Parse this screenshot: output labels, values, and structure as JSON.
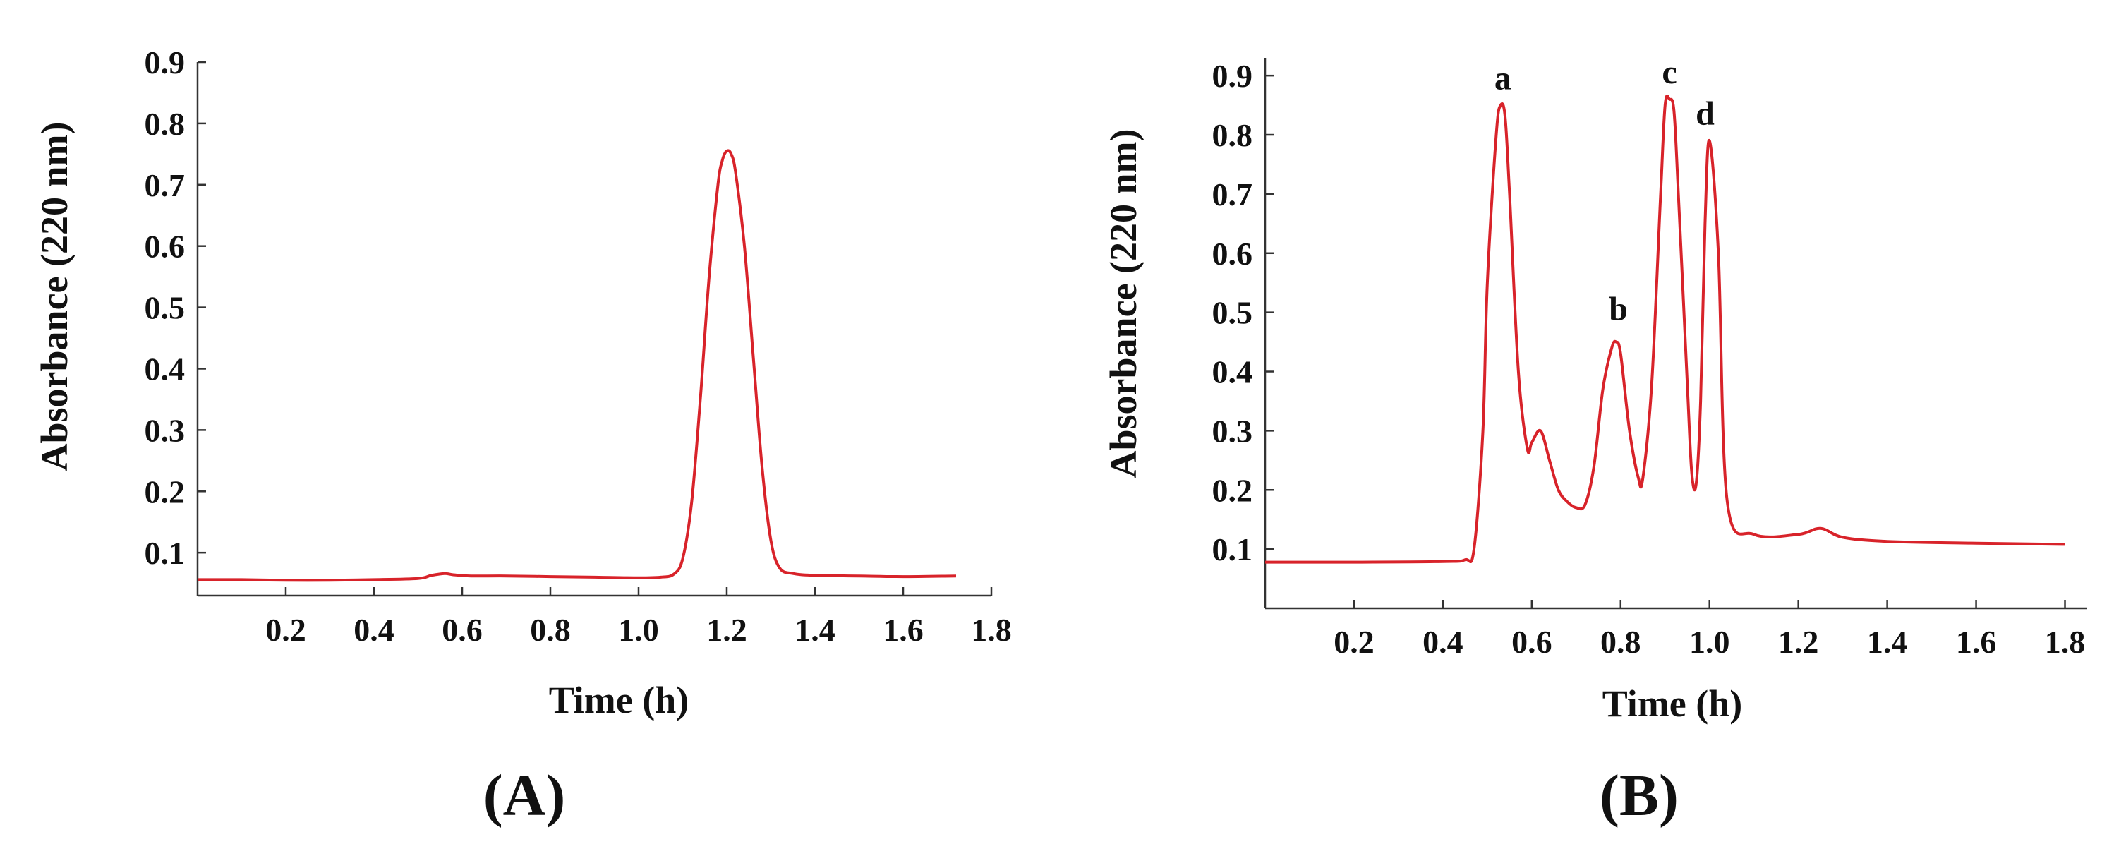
{
  "chart_data": [
    {
      "type": "line",
      "panel_label": "(A)",
      "xlabel": "Time (h)",
      "ylabel": "Absorbance (220 nm)",
      "xlim": [
        0.0,
        1.8
      ],
      "ylim": [
        0.03,
        0.9
      ],
      "x_ticks": [
        "0.2",
        "0.4",
        "0.6",
        "0.8",
        "1.0",
        "1.2",
        "1.4",
        "1.6",
        "1.8"
      ],
      "y_ticks": [
        "0.1",
        "0.2",
        "0.3",
        "0.4",
        "0.5",
        "0.6",
        "0.7",
        "0.8",
        "0.9"
      ],
      "grid": false,
      "color": "#d8232a",
      "series": [
        {
          "x": [
            0.0,
            0.1,
            0.2,
            0.3,
            0.4,
            0.5,
            0.53,
            0.56,
            0.58,
            0.62,
            0.7,
            0.8,
            0.9,
            1.0,
            1.05,
            1.08,
            1.1,
            1.12,
            1.14,
            1.16,
            1.18,
            1.19,
            1.2,
            1.21,
            1.22,
            1.24,
            1.26,
            1.28,
            1.3,
            1.32,
            1.35,
            1.4,
            1.5,
            1.6,
            1.72
          ],
          "y": [
            0.056,
            0.056,
            0.055,
            0.055,
            0.056,
            0.058,
            0.063,
            0.066,
            0.064,
            0.062,
            0.062,
            0.061,
            0.06,
            0.059,
            0.06,
            0.065,
            0.09,
            0.18,
            0.35,
            0.55,
            0.7,
            0.74,
            0.755,
            0.75,
            0.72,
            0.6,
            0.42,
            0.24,
            0.12,
            0.075,
            0.066,
            0.063,
            0.062,
            0.061,
            0.062
          ]
        }
      ],
      "annotations": []
    },
    {
      "type": "line",
      "panel_label": "(B)",
      "xlabel": "Time (h)",
      "ylabel": "Absorbance (220 nm)",
      "xlim": [
        0.0,
        1.85
      ],
      "ylim": [
        0.0,
        0.93
      ],
      "x_ticks": [
        "0.2",
        "0.4",
        "0.6",
        "0.8",
        "1.0",
        "1.2",
        "1.4",
        "1.6",
        "1.8"
      ],
      "y_ticks": [
        "0.1",
        "0.2",
        "0.3",
        "0.4",
        "0.5",
        "0.6",
        "0.7",
        "0.8",
        "0.9"
      ],
      "grid": false,
      "color": "#d8232a",
      "series": [
        {
          "x": [
            0.0,
            0.2,
            0.4,
            0.45,
            0.47,
            0.49,
            0.5,
            0.52,
            0.53,
            0.54,
            0.55,
            0.57,
            0.59,
            0.6,
            0.62,
            0.64,
            0.66,
            0.68,
            0.7,
            0.72,
            0.74,
            0.76,
            0.78,
            0.79,
            0.8,
            0.82,
            0.84,
            0.85,
            0.87,
            0.89,
            0.9,
            0.91,
            0.92,
            0.93,
            0.95,
            0.96,
            0.97,
            0.98,
            0.99,
            1.0,
            1.02,
            1.04,
            1.1,
            1.2,
            1.25,
            1.3,
            1.4,
            1.6,
            1.8
          ],
          "y": [
            0.078,
            0.078,
            0.079,
            0.082,
            0.1,
            0.3,
            0.55,
            0.8,
            0.85,
            0.83,
            0.7,
            0.4,
            0.27,
            0.28,
            0.3,
            0.25,
            0.2,
            0.18,
            0.17,
            0.175,
            0.24,
            0.37,
            0.44,
            0.45,
            0.43,
            0.3,
            0.22,
            0.22,
            0.38,
            0.7,
            0.85,
            0.86,
            0.84,
            0.7,
            0.38,
            0.23,
            0.21,
            0.35,
            0.65,
            0.79,
            0.6,
            0.18,
            0.125,
            0.125,
            0.135,
            0.12,
            0.113,
            0.11,
            0.108
          ]
        }
      ],
      "annotations": [
        {
          "text": "a",
          "x": 0.535,
          "y": 0.87
        },
        {
          "text": "b",
          "x": 0.795,
          "y": 0.48
        },
        {
          "text": "c",
          "x": 0.91,
          "y": 0.88
        },
        {
          "text": "d",
          "x": 0.99,
          "y": 0.81
        }
      ]
    }
  ]
}
